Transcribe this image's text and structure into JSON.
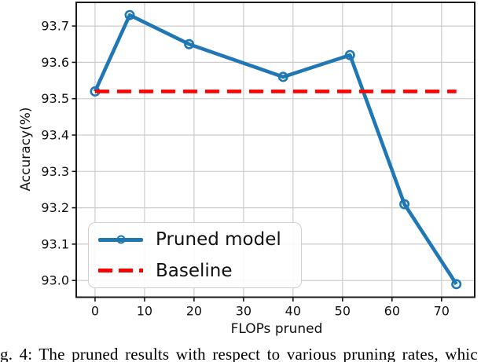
{
  "figure": {
    "caption": "g. 4: The pruned results with respect to various pruning rates, whic"
  },
  "chart_data": {
    "type": "line",
    "title": "",
    "xlabel": "FLOPs pruned",
    "ylabel": "Accuracy(%)",
    "xlim": [
      -3.8,
      76.7
    ],
    "ylim": [
      92.954,
      93.765
    ],
    "xticks": [
      0,
      10,
      20,
      30,
      40,
      50,
      60,
      70
    ],
    "yticks": [
      93.0,
      93.1,
      93.2,
      93.3,
      93.4,
      93.5,
      93.6,
      93.7
    ],
    "grid": true,
    "legend_position": "lower-left",
    "series": [
      {
        "name": "Pruned model",
        "color": "#1f77b4",
        "line_style": "solid",
        "marker": "circle",
        "x": [
          0,
          7,
          19,
          38,
          51.5,
          62.5,
          73
        ],
        "y": [
          93.52,
          93.73,
          93.65,
          93.56,
          93.62,
          93.21,
          92.99
        ]
      },
      {
        "name": "Baseline",
        "color": "#ff0000",
        "line_style": "dashed",
        "marker": "none",
        "x": [
          0,
          73
        ],
        "y": [
          93.52,
          93.52
        ]
      }
    ]
  }
}
